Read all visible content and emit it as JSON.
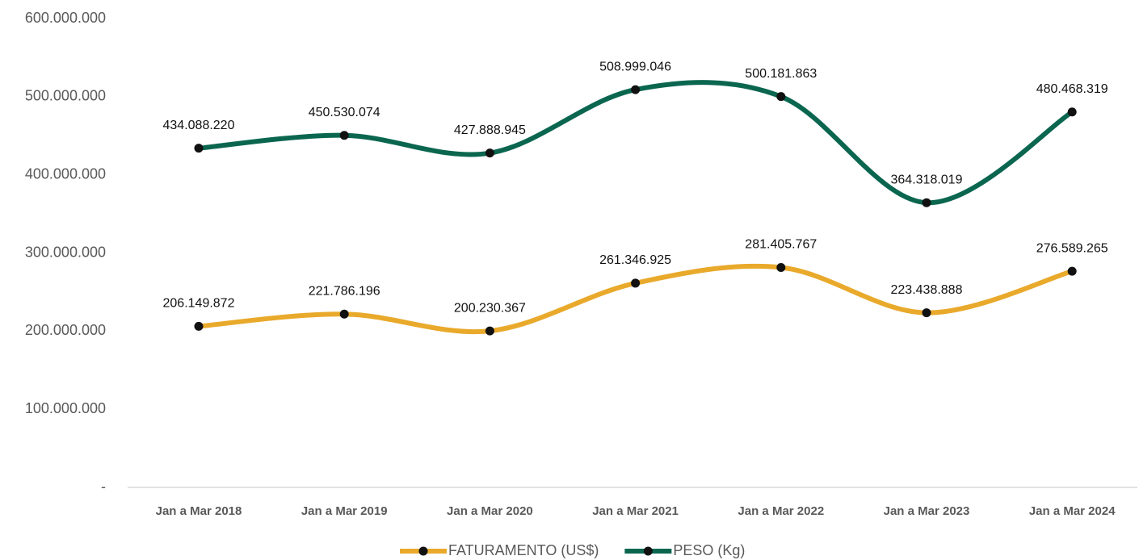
{
  "chart_data": {
    "type": "line",
    "categories": [
      "Jan a Mar 2018",
      "Jan a Mar 2019",
      "Jan a Mar 2020",
      "Jan a Mar 2021",
      "Jan a Mar 2022",
      "Jan a Mar 2023",
      "Jan a Mar 2024"
    ],
    "series": [
      {
        "name": "FATURAMENTO (US$)",
        "color": "#E9A92B",
        "values": [
          206149872,
          221786196,
          200230367,
          261346925,
          281405767,
          223438888,
          276589265
        ],
        "value_labels": [
          "206.149.872",
          "221.786.196",
          "200.230.367",
          "261.346.925",
          "281.405.767",
          "223.438.888",
          "276.589.265"
        ]
      },
      {
        "name": "PESO (Kg)",
        "color": "#0B6650",
        "values": [
          434088220,
          450530074,
          427888945,
          508999046,
          500181863,
          364318019,
          480468319
        ],
        "value_labels": [
          "434.088.220",
          "450.530.074",
          "427.888.945",
          "508.999.046",
          "500.181.863",
          "364.318.019",
          "480.468.319"
        ]
      }
    ],
    "ylim": [
      0,
      600000000
    ],
    "yticks": [
      {
        "value": 0,
        "label": "-"
      },
      {
        "value": 100000000,
        "label": "100.000.000"
      },
      {
        "value": 200000000,
        "label": "200.000.000"
      },
      {
        "value": 300000000,
        "label": "300.000.000"
      },
      {
        "value": 400000000,
        "label": "400.000.000"
      },
      {
        "value": 500000000,
        "label": "500.000.000"
      },
      {
        "value": 600000000,
        "label": "600.000.000"
      }
    ],
    "smooth": true,
    "grid": false,
    "legend": "bottom"
  }
}
